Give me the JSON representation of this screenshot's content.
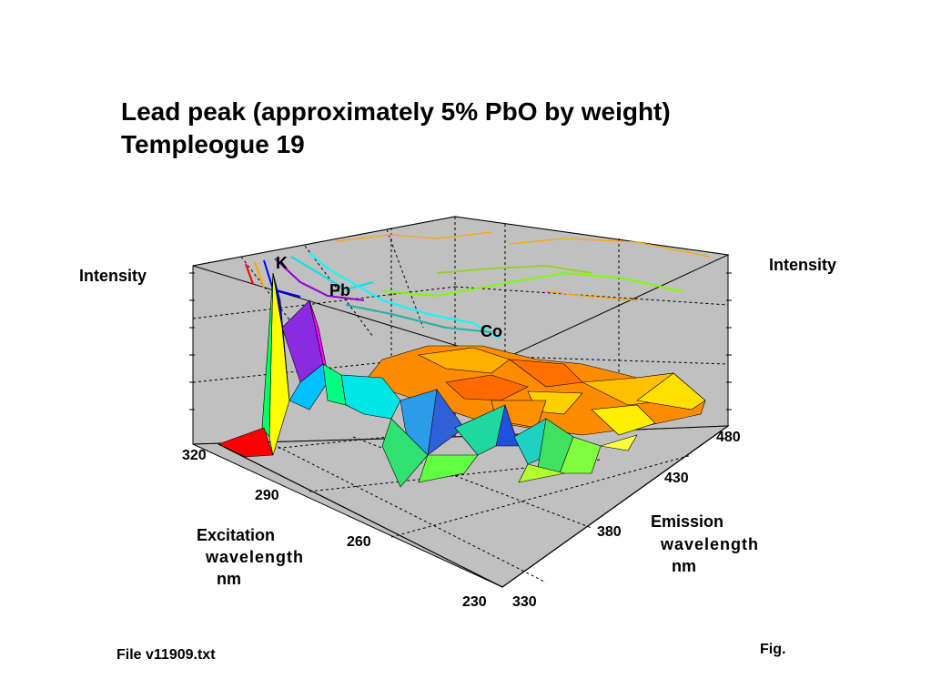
{
  "title_line1": "Lead peak (approximately 5% PbO by weight)",
  "title_line2": "Templeogue 19",
  "footer": {
    "file": "File v11909.txt",
    "fig": "Fig."
  },
  "chart_data": {
    "type": "surface3d",
    "z_label_left": "Intensity",
    "z_label_right": "Intensity",
    "x_axis": {
      "label_lines": [
        "Excitation",
        "wavelength",
        "nm"
      ],
      "ticks": [
        "320",
        "290",
        "260",
        "230"
      ],
      "range": [
        230,
        320
      ]
    },
    "y_axis": {
      "label_lines": [
        "Emission",
        "wavelength",
        "nm"
      ],
      "ticks": [
        "330",
        "380",
        "430",
        "480"
      ],
      "range": [
        330,
        480
      ]
    },
    "annotations": [
      "K",
      "Pb",
      "Co"
    ],
    "colormap": [
      "#ff0000",
      "#ff8c00",
      "#ffff00",
      "#00ff00",
      "#00e5e5",
      "#0000ff",
      "#ff00ff"
    ]
  }
}
